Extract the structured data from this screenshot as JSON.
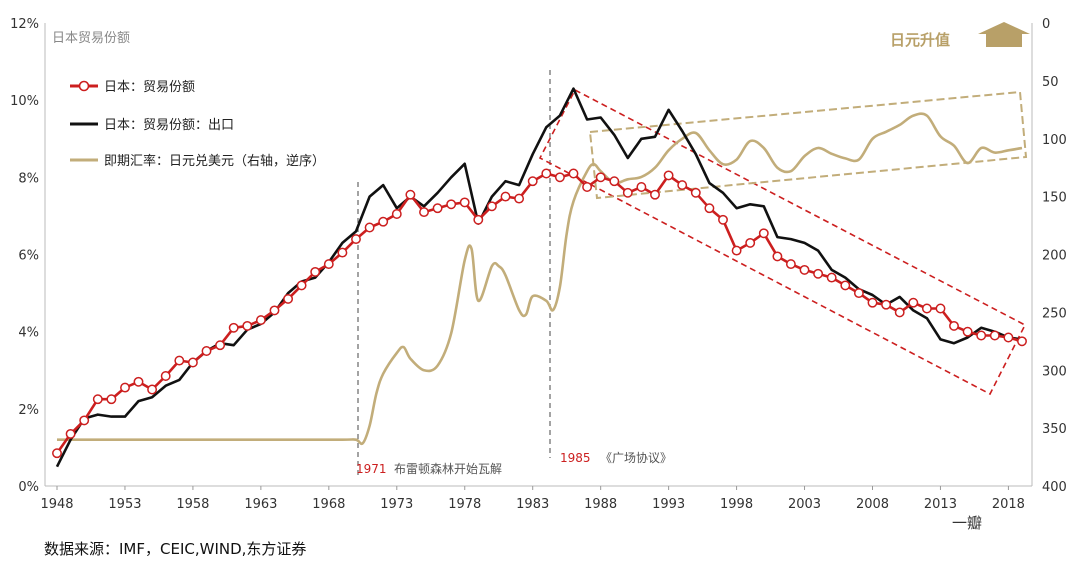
{
  "chart_data": {
    "type": "line",
    "inner_title": "日本贸易份额",
    "x_ticks": [
      "1948",
      "1953",
      "1958",
      "1963",
      "1968",
      "1973",
      "1978",
      "1983",
      "1988",
      "1993",
      "1998",
      "2003",
      "2008",
      "2013",
      "2018"
    ],
    "xlim": [
      1948,
      2019
    ],
    "y_left": {
      "ticks": [
        "0%",
        "2%",
        "4%",
        "6%",
        "8%",
        "10%",
        "12%"
      ],
      "ylim": [
        0,
        12
      ],
      "unit": "%"
    },
    "y_right": {
      "ticks": [
        "0",
        "50",
        "100",
        "150",
        "200",
        "250",
        "300",
        "350",
        "400"
      ],
      "ylim": [
        0,
        400
      ],
      "reversed": true
    },
    "series": [
      {
        "name": "日本：贸易份额",
        "color": "#cc1f1f",
        "axis": "left",
        "markers": true,
        "x": [
          1948,
          1949,
          1950,
          1951,
          1952,
          1953,
          1954,
          1955,
          1956,
          1957,
          1958,
          1959,
          1960,
          1961,
          1962,
          1963,
          1964,
          1965,
          1966,
          1967,
          1968,
          1969,
          1970,
          1971,
          1972,
          1973,
          1974,
          1975,
          1976,
          1977,
          1978,
          1979,
          1980,
          1981,
          1982,
          1983,
          1984,
          1985,
          1986,
          1987,
          1988,
          1989,
          1990,
          1991,
          1992,
          1993,
          1994,
          1995,
          1996,
          1997,
          1998,
          1999,
          2000,
          2001,
          2002,
          2003,
          2004,
          2005,
          2006,
          2007,
          2008,
          2009,
          2010,
          2011,
          2012,
          2013,
          2014,
          2015,
          2016,
          2017,
          2018,
          2019
        ],
        "values": [
          0.85,
          1.35,
          1.7,
          2.25,
          2.25,
          2.55,
          2.7,
          2.5,
          2.85,
          3.25,
          3.2,
          3.5,
          3.65,
          4.1,
          4.15,
          4.3,
          4.55,
          4.85,
          5.2,
          5.55,
          5.75,
          6.05,
          6.4,
          6.7,
          6.85,
          7.05,
          7.55,
          7.1,
          7.2,
          7.3,
          7.35,
          6.9,
          7.25,
          7.5,
          7.45,
          7.9,
          8.1,
          8.0,
          8.1,
          7.75,
          8.0,
          7.9,
          7.6,
          7.75,
          7.55,
          8.05,
          7.8,
          7.6,
          7.2,
          6.9,
          6.1,
          6.3,
          6.55,
          5.95,
          5.75,
          5.6,
          5.5,
          5.4,
          5.2,
          5.0,
          4.75,
          4.7,
          4.5,
          4.75,
          4.6,
          4.6,
          4.15,
          4.0,
          3.9,
          3.9,
          3.85,
          3.75
        ]
      },
      {
        "name": "日本：贸易份额：出口",
        "color": "#111111",
        "axis": "left",
        "markers": false,
        "x": [
          1948,
          1949,
          1950,
          1951,
          1952,
          1953,
          1954,
          1955,
          1956,
          1957,
          1958,
          1959,
          1960,
          1961,
          1962,
          1963,
          1964,
          1965,
          1966,
          1967,
          1968,
          1969,
          1970,
          1971,
          1972,
          1973,
          1974,
          1975,
          1976,
          1977,
          1978,
          1979,
          1980,
          1981,
          1982,
          1983,
          1984,
          1985,
          1986,
          1987,
          1988,
          1989,
          1990,
          1991,
          1992,
          1993,
          1994,
          1995,
          1996,
          1997,
          1998,
          1999,
          2000,
          2001,
          2002,
          2003,
          2004,
          2005,
          2006,
          2007,
          2008,
          2009,
          2010,
          2011,
          2012,
          2013,
          2014,
          2015,
          2016,
          2017,
          2018,
          2019
        ],
        "values": [
          0.5,
          1.2,
          1.75,
          1.85,
          1.8,
          1.8,
          2.2,
          2.3,
          2.6,
          2.75,
          3.2,
          3.5,
          3.7,
          3.65,
          4.05,
          4.2,
          4.5,
          5.0,
          5.3,
          5.4,
          5.8,
          6.3,
          6.6,
          7.5,
          7.8,
          7.2,
          7.5,
          7.25,
          7.6,
          8.0,
          8.35,
          6.8,
          7.5,
          7.9,
          7.8,
          8.6,
          9.3,
          9.6,
          10.3,
          9.5,
          9.55,
          9.1,
          8.5,
          9.0,
          9.05,
          9.75,
          9.2,
          8.6,
          7.85,
          7.6,
          7.2,
          7.3,
          7.25,
          6.45,
          6.4,
          6.3,
          6.1,
          5.6,
          5.4,
          5.1,
          4.95,
          4.7,
          4.9,
          4.55,
          4.35,
          3.8,
          3.7,
          3.85,
          4.1,
          4.0,
          3.85,
          3.8
        ]
      },
      {
        "name": "即期汇率：日元兑美元（右轴，逆序）",
        "color": "#c2ad7a",
        "axis": "right",
        "markers": false,
        "x": [
          1948,
          1949,
          1950,
          1955,
          1960,
          1965,
          1969,
          1970,
          1970.5,
          1971,
          1971.5,
          1972,
          1973,
          1973.5,
          1974,
          1975,
          1976,
          1977,
          1978,
          1978.5,
          1979,
          1980,
          1980.5,
          1981,
          1982,
          1982.5,
          1983,
          1984,
          1984.5,
          1985,
          1985.5,
          1986,
          1987,
          1987.5,
          1988,
          1989,
          1990,
          1991,
          1992,
          1993,
          1994,
          1995,
          1996,
          1997,
          1998,
          1999,
          2000,
          2001,
          2002,
          2003,
          2004,
          2005,
          2006,
          2007,
          2008,
          2009,
          2010,
          2011,
          2012,
          2013,
          2014,
          2015,
          2016,
          2017,
          2018,
          2019
        ],
        "values": [
          360,
          360,
          360,
          360,
          360,
          360,
          360,
          360,
          363,
          348,
          320,
          303,
          285,
          280,
          290,
          300,
          296,
          268,
          205,
          195,
          240,
          210,
          210,
          218,
          248,
          252,
          236,
          240,
          248,
          228,
          182,
          154,
          128,
          122,
          128,
          138,
          135,
          133,
          125,
          110,
          100,
          95,
          110,
          122,
          118,
          102,
          108,
          125,
          128,
          115,
          108,
          113,
          117,
          118,
          100,
          94,
          88,
          80,
          80,
          98,
          106,
          121,
          108,
          112,
          110,
          108
        ]
      }
    ],
    "annotations": {
      "vline_1971_year": "1971",
      "vline_1971_text": "布雷顿森林开始瓦解",
      "vline_1985_year": "1985",
      "vline_1985_text": "《广场协议》",
      "yen_rise_label": "日元升值"
    },
    "legend_position": "top-left"
  },
  "footer": {
    "source": "数据来源：IMF，CEIC,WIND,东方证券",
    "watermark": "一瓣"
  }
}
